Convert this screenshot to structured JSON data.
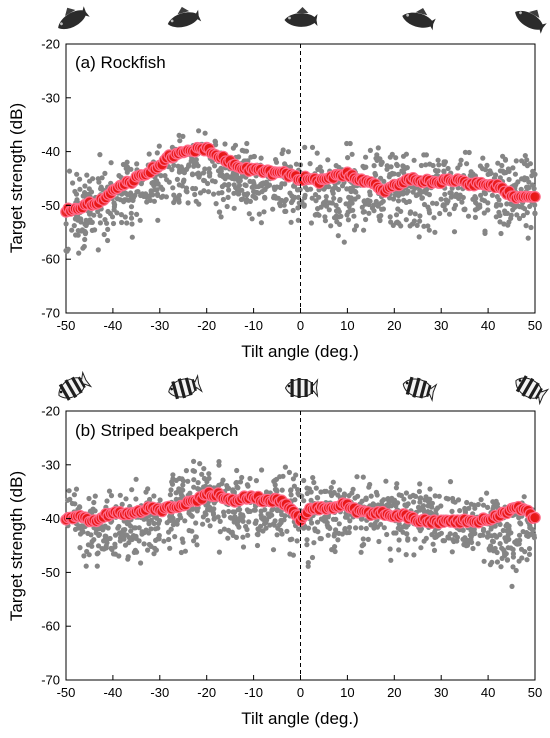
{
  "chart_data": [
    {
      "type": "scatter",
      "title": "(a) Rockfish",
      "xlabel": "Tilt angle (deg.)",
      "ylabel": "Target strength (dB)",
      "xlim": [
        -50,
        50
      ],
      "ylim": [
        -70,
        -20
      ],
      "xticks": [
        -50,
        -40,
        -30,
        -20,
        -10,
        0,
        10,
        20,
        30,
        40,
        50
      ],
      "yticks": [
        -20,
        -30,
        -40,
        -50,
        -60,
        -70
      ],
      "reference_line_x": 0,
      "fish_icon_angles": [
        -50,
        -25,
        0,
        25,
        50
      ],
      "colors": {
        "scatter": "#858585",
        "mean": "#e81818",
        "mean_edge": "#ff6b8a"
      },
      "mean_series": {
        "x": [
          -50,
          -48,
          -46,
          -44,
          -42,
          -40,
          -38,
          -36,
          -34,
          -32,
          -30,
          -28,
          -26,
          -24,
          -22,
          -20,
          -18,
          -16,
          -14,
          -12,
          -10,
          -8,
          -6,
          -4,
          -2,
          0,
          2,
          4,
          6,
          8,
          10,
          12,
          14,
          16,
          18,
          20,
          22,
          24,
          26,
          28,
          30,
          32,
          34,
          36,
          38,
          40,
          42,
          44,
          46,
          48,
          50
        ],
        "y": [
          -51,
          -50.5,
          -50,
          -49.5,
          -49,
          -47.5,
          -46,
          -45.5,
          -44.5,
          -43.5,
          -42.5,
          -41,
          -40.5,
          -40,
          -39.5,
          -39.5,
          -40.5,
          -41.5,
          -42.5,
          -43,
          -43.5,
          -43.5,
          -44,
          -44,
          -44.5,
          -45,
          -45,
          -45.5,
          -45,
          -44.5,
          -44,
          -45,
          -45.5,
          -46,
          -47.5,
          -46.5,
          -45.5,
          -45,
          -45.5,
          -45.5,
          -45.5,
          -45.5,
          -45.5,
          -46,
          -46,
          -46,
          -46.5,
          -47.5,
          -48.5,
          -48,
          -48.5
        ]
      },
      "scatter_spread": {
        "x": [
          -50,
          -45,
          -40,
          -35,
          -30,
          -25,
          -20,
          -15,
          -10,
          -5,
          0,
          5,
          10,
          15,
          20,
          25,
          30,
          35,
          40,
          45,
          50
        ],
        "low": [
          -64,
          -60,
          -58,
          -57,
          -55,
          -53,
          -52,
          -55,
          -56,
          -55,
          -55,
          -57,
          -58,
          -57,
          -57,
          -58,
          -57,
          -56,
          -58,
          -59,
          -58
        ],
        "high": [
          -42,
          -41,
          -39,
          -38,
          -36,
          -34,
          -33,
          -35,
          -36,
          -38,
          -38,
          -37,
          -37,
          -37,
          -37,
          -38,
          -38,
          -37,
          -37,
          -37,
          -38
        ]
      }
    },
    {
      "type": "scatter",
      "title": "(b) Striped beakperch",
      "xlabel": "Tilt angle (deg.)",
      "ylabel": "Target strength (dB)",
      "xlim": [
        -50,
        50
      ],
      "ylim": [
        -70,
        -20
      ],
      "xticks": [
        -50,
        -40,
        -30,
        -20,
        -10,
        0,
        10,
        20,
        30,
        40,
        50
      ],
      "yticks": [
        -20,
        -30,
        -40,
        -50,
        -60,
        -70
      ],
      "reference_line_x": 0,
      "fish_icon_angles": [
        -50,
        -25,
        0,
        25,
        50
      ],
      "colors": {
        "scatter": "#858585",
        "mean": "#e81818",
        "mean_edge": "#ff6b8a"
      },
      "mean_series": {
        "x": [
          -50,
          -48,
          -46,
          -44,
          -42,
          -40,
          -38,
          -36,
          -34,
          -32,
          -30,
          -28,
          -26,
          -24,
          -22,
          -20,
          -18,
          -16,
          -14,
          -12,
          -10,
          -8,
          -6,
          -4,
          -2,
          0,
          2,
          4,
          6,
          8,
          10,
          12,
          14,
          16,
          18,
          20,
          22,
          24,
          26,
          28,
          30,
          32,
          34,
          36,
          38,
          40,
          42,
          44,
          46,
          48,
          50
        ],
        "y": [
          -40,
          -39.5,
          -40,
          -40.5,
          -39.5,
          -39,
          -39,
          -39,
          -38.5,
          -38,
          -38.5,
          -38,
          -37.5,
          -37,
          -36.5,
          -35.5,
          -35.5,
          -36,
          -36.5,
          -36,
          -36,
          -36.5,
          -36.5,
          -37,
          -38,
          -40,
          -38.5,
          -38,
          -38,
          -37.5,
          -37.5,
          -38.5,
          -39,
          -39,
          -39,
          -39.5,
          -39.5,
          -40,
          -40.5,
          -40.5,
          -40.5,
          -40.5,
          -40.5,
          -40.5,
          -40.5,
          -40,
          -39.5,
          -39,
          -38,
          -38.5,
          -40
        ]
      },
      "scatter_spread": {
        "x": [
          -50,
          -45,
          -40,
          -35,
          -30,
          -25,
          -20,
          -15,
          -10,
          -5,
          0,
          5,
          10,
          15,
          20,
          25,
          30,
          35,
          40,
          45,
          50
        ],
        "low": [
          -46,
          -52,
          -51,
          -51,
          -50,
          -48,
          -47,
          -48,
          -49,
          -49,
          -51,
          -50,
          -49,
          -48,
          -48,
          -48,
          -49,
          -49,
          -50,
          -53,
          -50
        ],
        "high": [
          -32,
          -32,
          -32,
          -31,
          -30,
          -28,
          -26,
          -27,
          -28,
          -28,
          -28,
          -29,
          -29,
          -30,
          -30,
          -31,
          -32,
          -33,
          -33,
          -34,
          -33
        ]
      }
    }
  ]
}
